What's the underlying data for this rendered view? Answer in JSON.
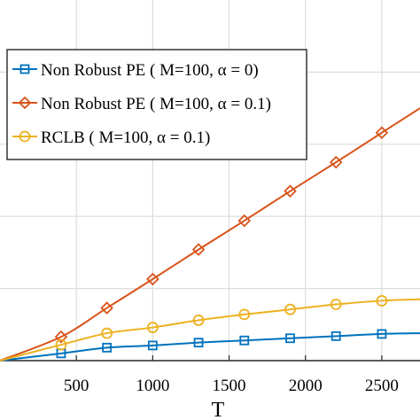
{
  "chart_data": {
    "type": "line",
    "xlabel": "T",
    "xlim": [
      0,
      2750
    ],
    "ylim": [
      0,
      5
    ],
    "x_ticks": [
      500,
      1000,
      1500,
      2000,
      2500
    ],
    "x_tick_labels": [
      "500",
      "1000",
      "1500",
      "2000",
      "2500"
    ],
    "grid": true,
    "legend_position": "top-left",
    "series": [
      {
        "name": "Non Robust PE ( M=100, α = 0)",
        "color": "#0072BD",
        "marker": "square",
        "x": [
          0,
          400,
          700,
          1000,
          1300,
          1600,
          1900,
          2200,
          2500,
          2750
        ],
        "y": [
          0.0,
          0.1,
          0.18,
          0.21,
          0.25,
          0.28,
          0.31,
          0.34,
          0.37,
          0.38
        ]
      },
      {
        "name": "Non Robust PE ( M=100, α = 0.1)",
        "color": "#D95319",
        "marker": "diamond",
        "x": [
          0,
          400,
          700,
          1000,
          1300,
          1600,
          1900,
          2200,
          2500,
          2750
        ],
        "y": [
          0.0,
          0.33,
          0.73,
          1.13,
          1.54,
          1.94,
          2.35,
          2.75,
          3.16,
          3.5
        ]
      },
      {
        "name": "RCLB ( M=100, α = 0.1)",
        "color": "#EDB120",
        "marker": "circle",
        "x": [
          0,
          400,
          700,
          1000,
          1300,
          1600,
          1900,
          2200,
          2500,
          2750
        ],
        "y": [
          0.0,
          0.22,
          0.38,
          0.46,
          0.56,
          0.64,
          0.71,
          0.78,
          0.83,
          0.85
        ]
      }
    ]
  }
}
